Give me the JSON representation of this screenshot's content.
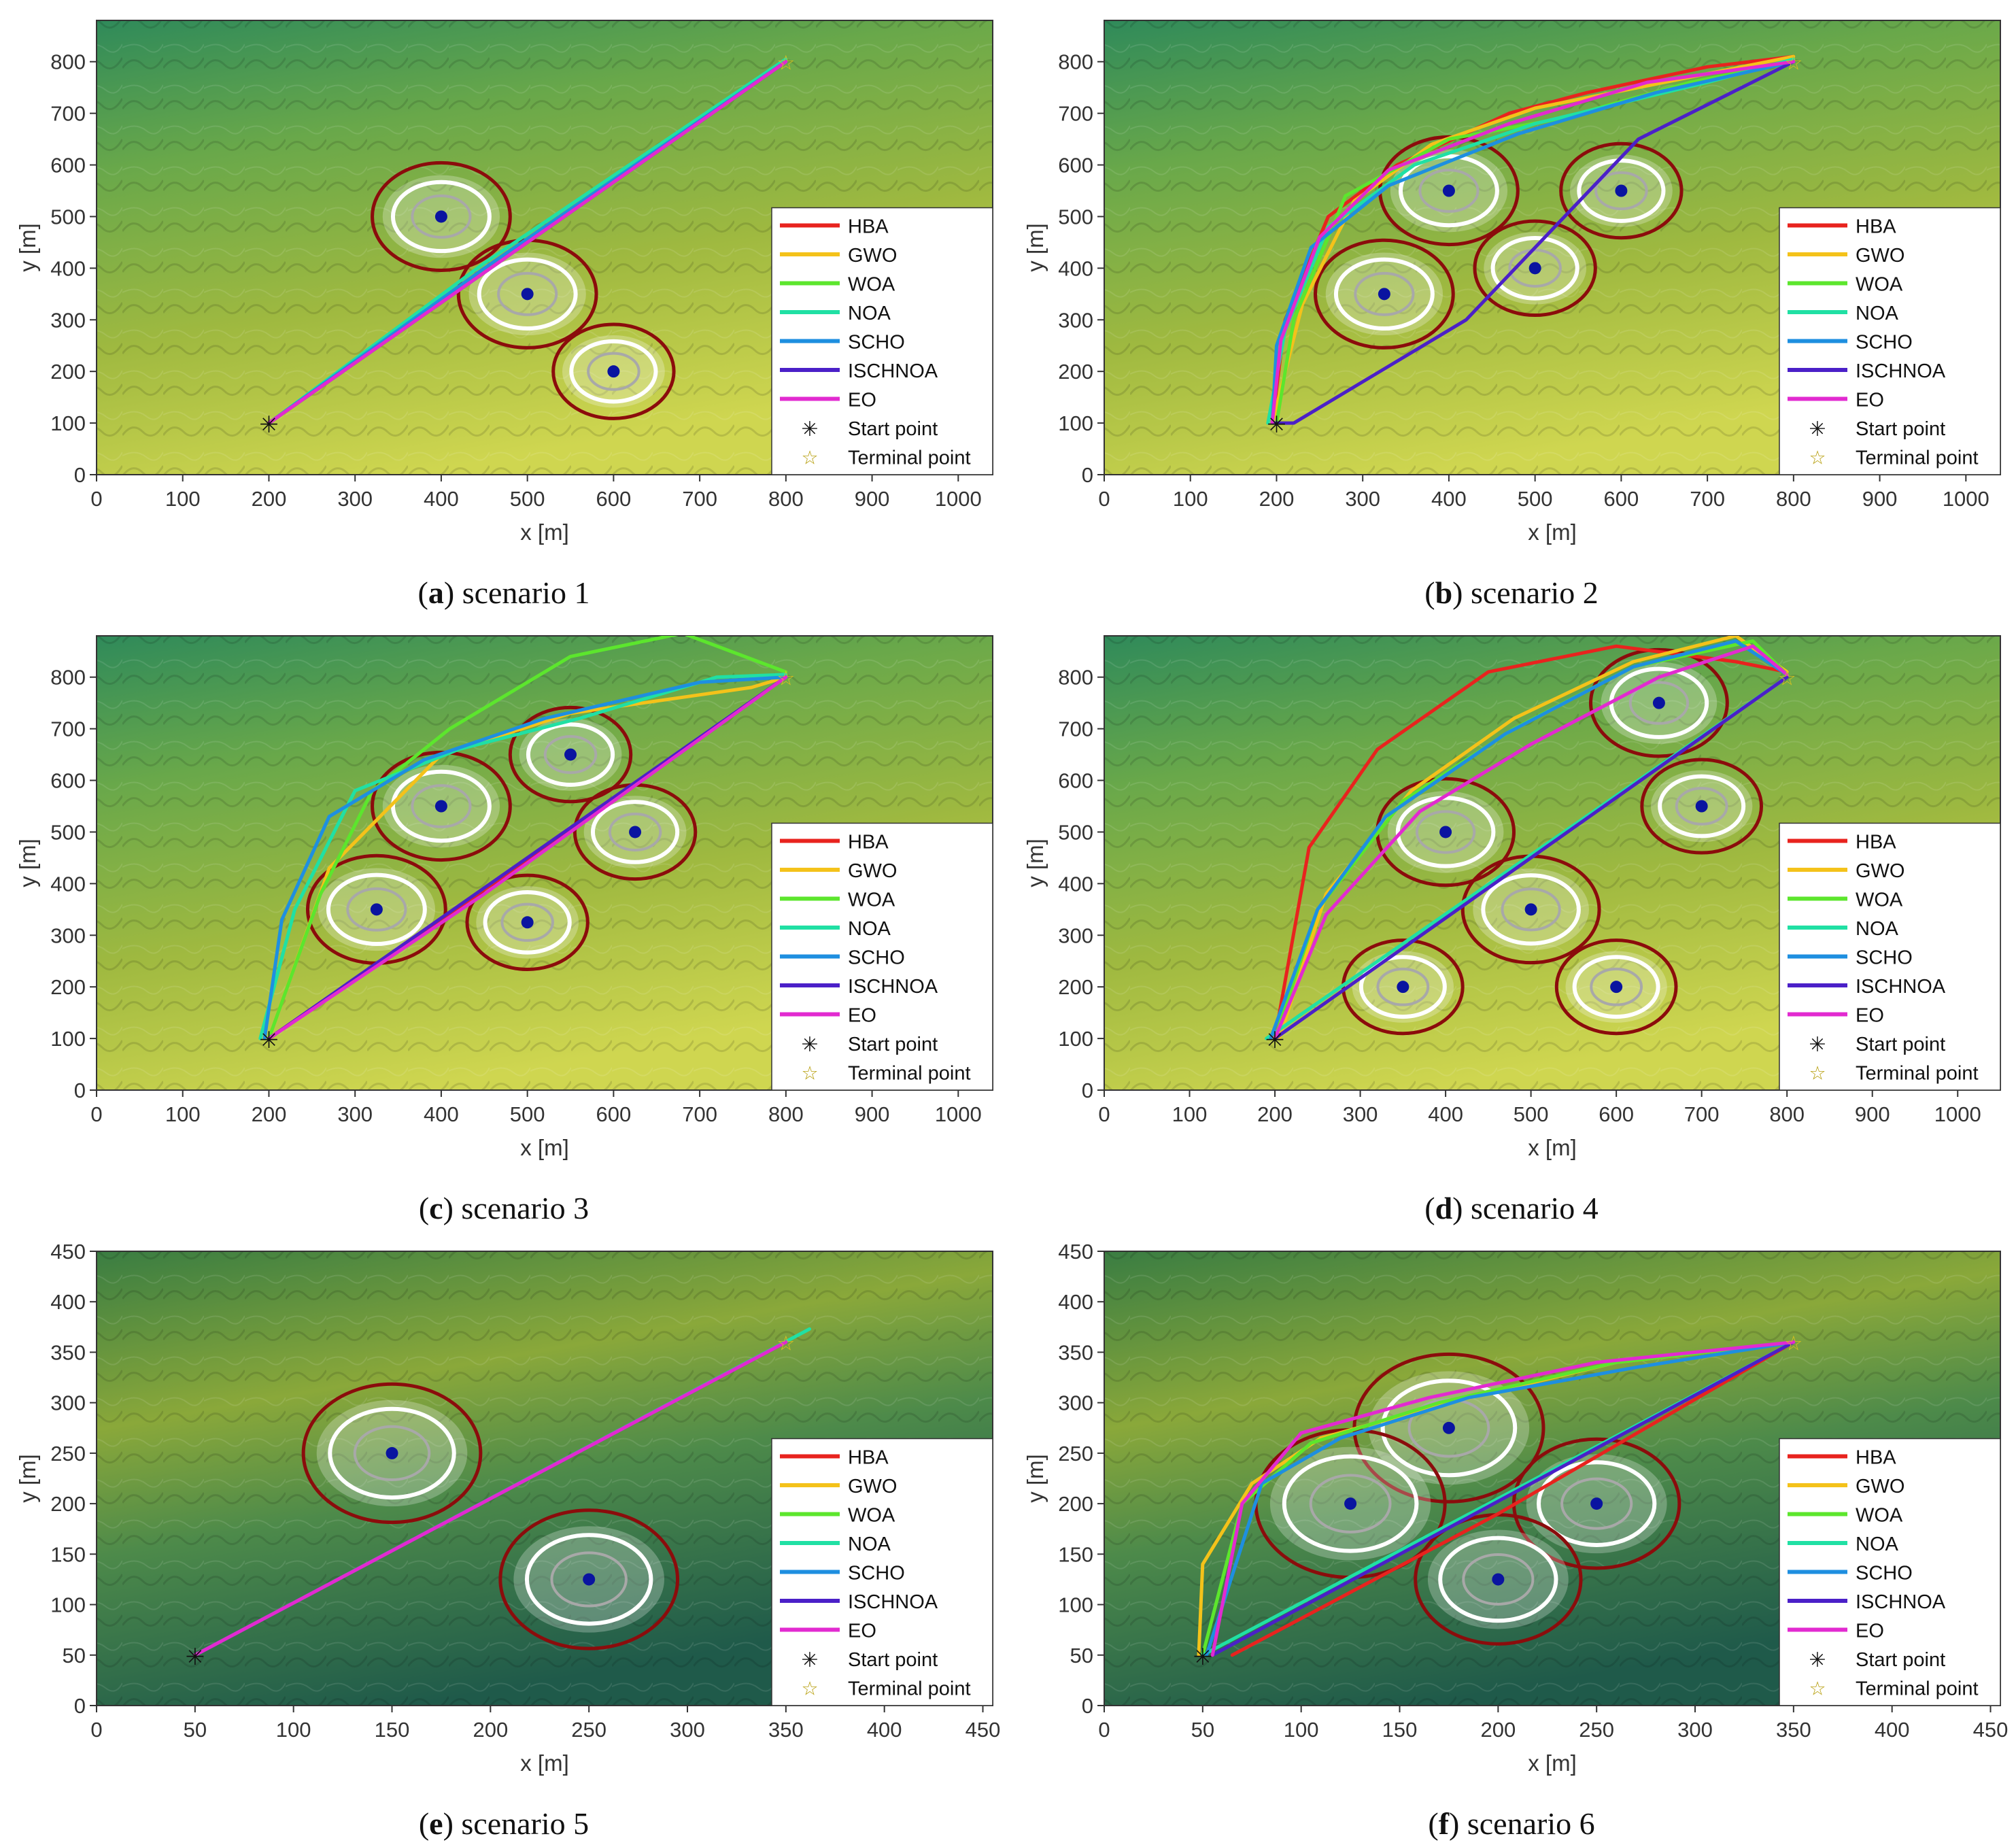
{
  "legend_labels": [
    "HBA",
    "GWO",
    "WOA",
    "NOA",
    "SCHO",
    "ISCHNOA",
    "EO",
    "Start point",
    "Terminal point"
  ],
  "colors": {
    "HBA": "#e8231e",
    "GWO": "#f4c21a",
    "WOA": "#5ce62d",
    "NOA": "#20e0a4",
    "SCHO": "#1e8fe0",
    "ISCHNOA": "#4b20c8",
    "EO": "#e22ad0",
    "threat_outer": "#8b0c0c",
    "threat_inner": "#ffffff",
    "threat_center": "#0a14a0"
  },
  "chart_data": [
    {
      "id": "a",
      "type": "line",
      "caption_letter": "a",
      "caption_text": " scenario 1",
      "xlabel": "x [m]",
      "ylabel": "y [m]",
      "xlim": [
        0,
        1040
      ],
      "ylim": [
        0,
        880
      ],
      "xticks": [
        0,
        100,
        200,
        300,
        400,
        500,
        600,
        700,
        800,
        900,
        1000
      ],
      "yticks": [
        0,
        100,
        200,
        300,
        400,
        500,
        600,
        700,
        800
      ],
      "legend": "right",
      "start": [
        200,
        100
      ],
      "terminal": [
        800,
        800
      ],
      "threats": [
        {
          "x": 400,
          "y": 500,
          "r": 80
        },
        {
          "x": 500,
          "y": 350,
          "r": 80
        },
        {
          "x": 600,
          "y": 200,
          "r": 70
        }
      ],
      "series": [
        {
          "name": "HBA",
          "x": [
            200,
            800
          ],
          "y": [
            100,
            800
          ]
        },
        {
          "name": "GWO",
          "x": [
            200,
            800
          ],
          "y": [
            100,
            800
          ]
        },
        {
          "name": "WOA",
          "x": [
            200,
            800
          ],
          "y": [
            100,
            800
          ]
        },
        {
          "name": "NOA",
          "x": [
            200,
            450,
            800
          ],
          "y": [
            100,
            410,
            805
          ]
        },
        {
          "name": "SCHO",
          "x": [
            200,
            450,
            800
          ],
          "y": [
            100,
            400,
            800
          ]
        },
        {
          "name": "ISCHNOA",
          "x": [
            200,
            800
          ],
          "y": [
            100,
            800
          ]
        },
        {
          "name": "EO",
          "x": [
            200,
            800
          ],
          "y": [
            100,
            800
          ]
        }
      ]
    },
    {
      "id": "b",
      "type": "line",
      "caption_letter": "b",
      "caption_text": " scenario 2",
      "xlabel": "x [m]",
      "ylabel": "y [m]",
      "xlim": [
        0,
        1040
      ],
      "ylim": [
        0,
        880
      ],
      "xticks": [
        0,
        100,
        200,
        300,
        400,
        500,
        600,
        700,
        800,
        900,
        1000
      ],
      "yticks": [
        0,
        100,
        200,
        300,
        400,
        500,
        600,
        700,
        800
      ],
      "legend": "right",
      "start": [
        200,
        100
      ],
      "terminal": [
        800,
        800
      ],
      "threats": [
        {
          "x": 400,
          "y": 550,
          "r": 80
        },
        {
          "x": 325,
          "y": 350,
          "r": 80
        },
        {
          "x": 500,
          "y": 400,
          "r": 70
        },
        {
          "x": 600,
          "y": 550,
          "r": 70
        }
      ],
      "series": [
        {
          "name": "HBA",
          "x": [
            195,
            210,
            260,
            340,
            470,
            560,
            700,
            800
          ],
          "y": [
            100,
            300,
            500,
            600,
            700,
            740,
            790,
            810
          ]
        },
        {
          "name": "GWO",
          "x": [
            195,
            230,
            290,
            380,
            500,
            650,
            800
          ],
          "y": [
            100,
            330,
            530,
            640,
            710,
            760,
            810
          ]
        },
        {
          "name": "WOA",
          "x": [
            200,
            220,
            280,
            400,
            530,
            680,
            800
          ],
          "y": [
            100,
            300,
            540,
            650,
            690,
            760,
            800
          ]
        },
        {
          "name": "NOA",
          "x": [
            190,
            210,
            260,
            360,
            500,
            700,
            800
          ],
          "y": [
            100,
            280,
            480,
            600,
            680,
            760,
            805
          ]
        },
        {
          "name": "SCHO",
          "x": [
            195,
            200,
            240,
            330,
            480,
            640,
            800
          ],
          "y": [
            100,
            250,
            440,
            560,
            660,
            740,
            800
          ]
        },
        {
          "name": "ISCHNOA",
          "x": [
            195,
            220,
            420,
            620,
            800
          ],
          "y": [
            100,
            100,
            300,
            650,
            800
          ]
        },
        {
          "name": "EO",
          "x": [
            195,
            205,
            250,
            330,
            470,
            630,
            800
          ],
          "y": [
            100,
            260,
            460,
            590,
            680,
            760,
            800
          ]
        }
      ]
    },
    {
      "id": "c",
      "type": "line",
      "caption_letter": "c",
      "caption_text": " scenario 3",
      "xlabel": "x [m]",
      "ylabel": "y [m]",
      "xlim": [
        0,
        1040
      ],
      "ylim": [
        0,
        880
      ],
      "xticks": [
        0,
        100,
        200,
        300,
        400,
        500,
        600,
        700,
        800,
        900,
        1000
      ],
      "yticks": [
        0,
        100,
        200,
        300,
        400,
        500,
        600,
        700,
        800
      ],
      "legend": "right",
      "start": [
        200,
        100
      ],
      "terminal": [
        800,
        800
      ],
      "threats": [
        {
          "x": 400,
          "y": 550,
          "r": 80
        },
        {
          "x": 550,
          "y": 650,
          "r": 70
        },
        {
          "x": 625,
          "y": 500,
          "r": 70
        },
        {
          "x": 325,
          "y": 350,
          "r": 80
        },
        {
          "x": 500,
          "y": 325,
          "r": 70
        }
      ],
      "series": [
        {
          "name": "HBA",
          "x": [
            200,
            400,
            800
          ],
          "y": [
            100,
            330,
            800
          ]
        },
        {
          "name": "GWO",
          "x": [
            200,
            270,
            400,
            550,
            760,
            800
          ],
          "y": [
            100,
            430,
            650,
            730,
            780,
            800
          ]
        },
        {
          "name": "WOA",
          "x": [
            200,
            260,
            320,
            410,
            550,
            680,
            800
          ],
          "y": [
            100,
            380,
            580,
            700,
            840,
            885,
            810
          ]
        },
        {
          "name": "NOA",
          "x": [
            190,
            230,
            300,
            420,
            560,
            720,
            800
          ],
          "y": [
            100,
            350,
            580,
            660,
            720,
            800,
            805
          ]
        },
        {
          "name": "SCHO",
          "x": [
            195,
            215,
            270,
            380,
            520,
            700,
            800
          ],
          "y": [
            100,
            330,
            530,
            640,
            720,
            790,
            800
          ]
        },
        {
          "name": "ISCHNOA",
          "x": [
            200,
            800
          ],
          "y": [
            100,
            800
          ]
        },
        {
          "name": "EO",
          "x": [
            200,
            450,
            800
          ],
          "y": [
            100,
            380,
            800
          ]
        }
      ]
    },
    {
      "id": "d",
      "type": "line",
      "caption_letter": "d",
      "caption_text": " scenario 4",
      "xlabel": "x [m]",
      "ylabel": "y [m]",
      "xlim": [
        0,
        1050
      ],
      "ylim": [
        0,
        880
      ],
      "xticks": [
        0,
        100,
        200,
        300,
        400,
        500,
        600,
        700,
        800,
        900,
        1000
      ],
      "yticks": [
        0,
        100,
        200,
        300,
        400,
        500,
        600,
        700,
        800
      ],
      "legend": "right",
      "start": [
        200,
        100
      ],
      "terminal": [
        800,
        800
      ],
      "threats": [
        {
          "x": 650,
          "y": 750,
          "r": 80
        },
        {
          "x": 700,
          "y": 550,
          "r": 70
        },
        {
          "x": 400,
          "y": 500,
          "r": 80
        },
        {
          "x": 500,
          "y": 350,
          "r": 80
        },
        {
          "x": 350,
          "y": 200,
          "r": 70
        },
        {
          "x": 600,
          "y": 200,
          "r": 70
        }
      ],
      "series": [
        {
          "name": "HBA",
          "x": [
            200,
            240,
            320,
            450,
            600,
            740,
            800
          ],
          "y": [
            100,
            470,
            660,
            810,
            860,
            830,
            810
          ]
        },
        {
          "name": "GWO",
          "x": [
            205,
            260,
            360,
            480,
            620,
            740,
            800
          ],
          "y": [
            100,
            380,
            580,
            720,
            830,
            880,
            810
          ]
        },
        {
          "name": "WOA",
          "x": [
            200,
            250,
            350,
            480,
            620,
            760,
            800
          ],
          "y": [
            100,
            350,
            560,
            700,
            820,
            870,
            805
          ]
        },
        {
          "name": "NOA",
          "x": [
            190,
            800
          ],
          "y": [
            100,
            800
          ]
        },
        {
          "name": "SCHO",
          "x": [
            195,
            250,
            330,
            470,
            620,
            740,
            800
          ],
          "y": [
            100,
            350,
            530,
            690,
            820,
            870,
            805
          ]
        },
        {
          "name": "ISCHNOA",
          "x": [
            200,
            800
          ],
          "y": [
            100,
            800
          ]
        },
        {
          "name": "EO",
          "x": [
            200,
            260,
            370,
            500,
            650,
            760,
            800
          ],
          "y": [
            100,
            340,
            540,
            670,
            800,
            860,
            805
          ]
        }
      ]
    },
    {
      "id": "e",
      "type": "line",
      "caption_letter": "e",
      "caption_text": " scenario 5",
      "xlabel": "x [m]",
      "ylabel": "y [m]",
      "xlim": [
        0,
        455
      ],
      "ylim": [
        0,
        450
      ],
      "xticks": [
        0,
        50,
        100,
        150,
        200,
        250,
        300,
        350,
        400,
        450
      ],
      "yticks": [
        0,
        50,
        100,
        150,
        200,
        250,
        300,
        350,
        400,
        450
      ],
      "legend": "right",
      "start": [
        50,
        50
      ],
      "terminal": [
        350,
        360
      ],
      "threats": [
        {
          "x": 150,
          "y": 250,
          "r": 45
        },
        {
          "x": 250,
          "y": 125,
          "r": 45
        }
      ],
      "series": [
        {
          "name": "HBA",
          "x": [
            50,
            350
          ],
          "y": [
            50,
            360
          ]
        },
        {
          "name": "GWO",
          "x": [
            50,
            350
          ],
          "y": [
            50,
            360
          ]
        },
        {
          "name": "WOA",
          "x": [
            50,
            350
          ],
          "y": [
            50,
            360
          ]
        },
        {
          "name": "NOA",
          "x": [
            50,
            362
          ],
          "y": [
            50,
            373
          ]
        },
        {
          "name": "SCHO",
          "x": [
            50,
            350
          ],
          "y": [
            50,
            360
          ]
        },
        {
          "name": "ISCHNOA",
          "x": [
            50,
            350
          ],
          "y": [
            50,
            360
          ]
        },
        {
          "name": "EO",
          "x": [
            50,
            350
          ],
          "y": [
            50,
            360
          ]
        }
      ]
    },
    {
      "id": "f",
      "type": "line",
      "caption_letter": "f",
      "caption_text": " scenario 6",
      "xlabel": "x [m]",
      "ylabel": "y [m]",
      "xlim": [
        0,
        455
      ],
      "ylim": [
        0,
        450
      ],
      "xticks": [
        0,
        50,
        100,
        150,
        200,
        250,
        300,
        350,
        400,
        450
      ],
      "yticks": [
        0,
        50,
        100,
        150,
        200,
        250,
        300,
        350,
        400,
        450
      ],
      "legend": "right",
      "start": [
        50,
        50
      ],
      "terminal": [
        350,
        360
      ],
      "threats": [
        {
          "x": 175,
          "y": 275,
          "r": 48
        },
        {
          "x": 125,
          "y": 200,
          "r": 48
        },
        {
          "x": 250,
          "y": 200,
          "r": 42
        },
        {
          "x": 200,
          "y": 125,
          "r": 42
        }
      ],
      "series": [
        {
          "name": "HBA",
          "x": [
            65,
            200,
            350
          ],
          "y": [
            50,
            190,
            360
          ]
        },
        {
          "name": "GWO",
          "x": [
            48,
            50,
            75,
            110,
            175,
            260,
            350
          ],
          "y": [
            50,
            140,
            220,
            265,
            300,
            340,
            360
          ]
        },
        {
          "name": "WOA",
          "x": [
            50,
            70,
            105,
            170,
            260,
            350
          ],
          "y": [
            50,
            200,
            260,
            300,
            340,
            360
          ]
        },
        {
          "name": "NOA",
          "x": [
            50,
            350
          ],
          "y": [
            50,
            360
          ]
        },
        {
          "name": "SCHO",
          "x": [
            52,
            80,
            120,
            185,
            270,
            350
          ],
          "y": [
            50,
            220,
            265,
            305,
            335,
            360
          ]
        },
        {
          "name": "ISCHNOA",
          "x": [
            55,
            350
          ],
          "y": [
            50,
            360
          ]
        },
        {
          "name": "EO",
          "x": [
            55,
            70,
            100,
            165,
            250,
            350
          ],
          "y": [
            50,
            200,
            270,
            305,
            340,
            360
          ]
        }
      ]
    }
  ]
}
